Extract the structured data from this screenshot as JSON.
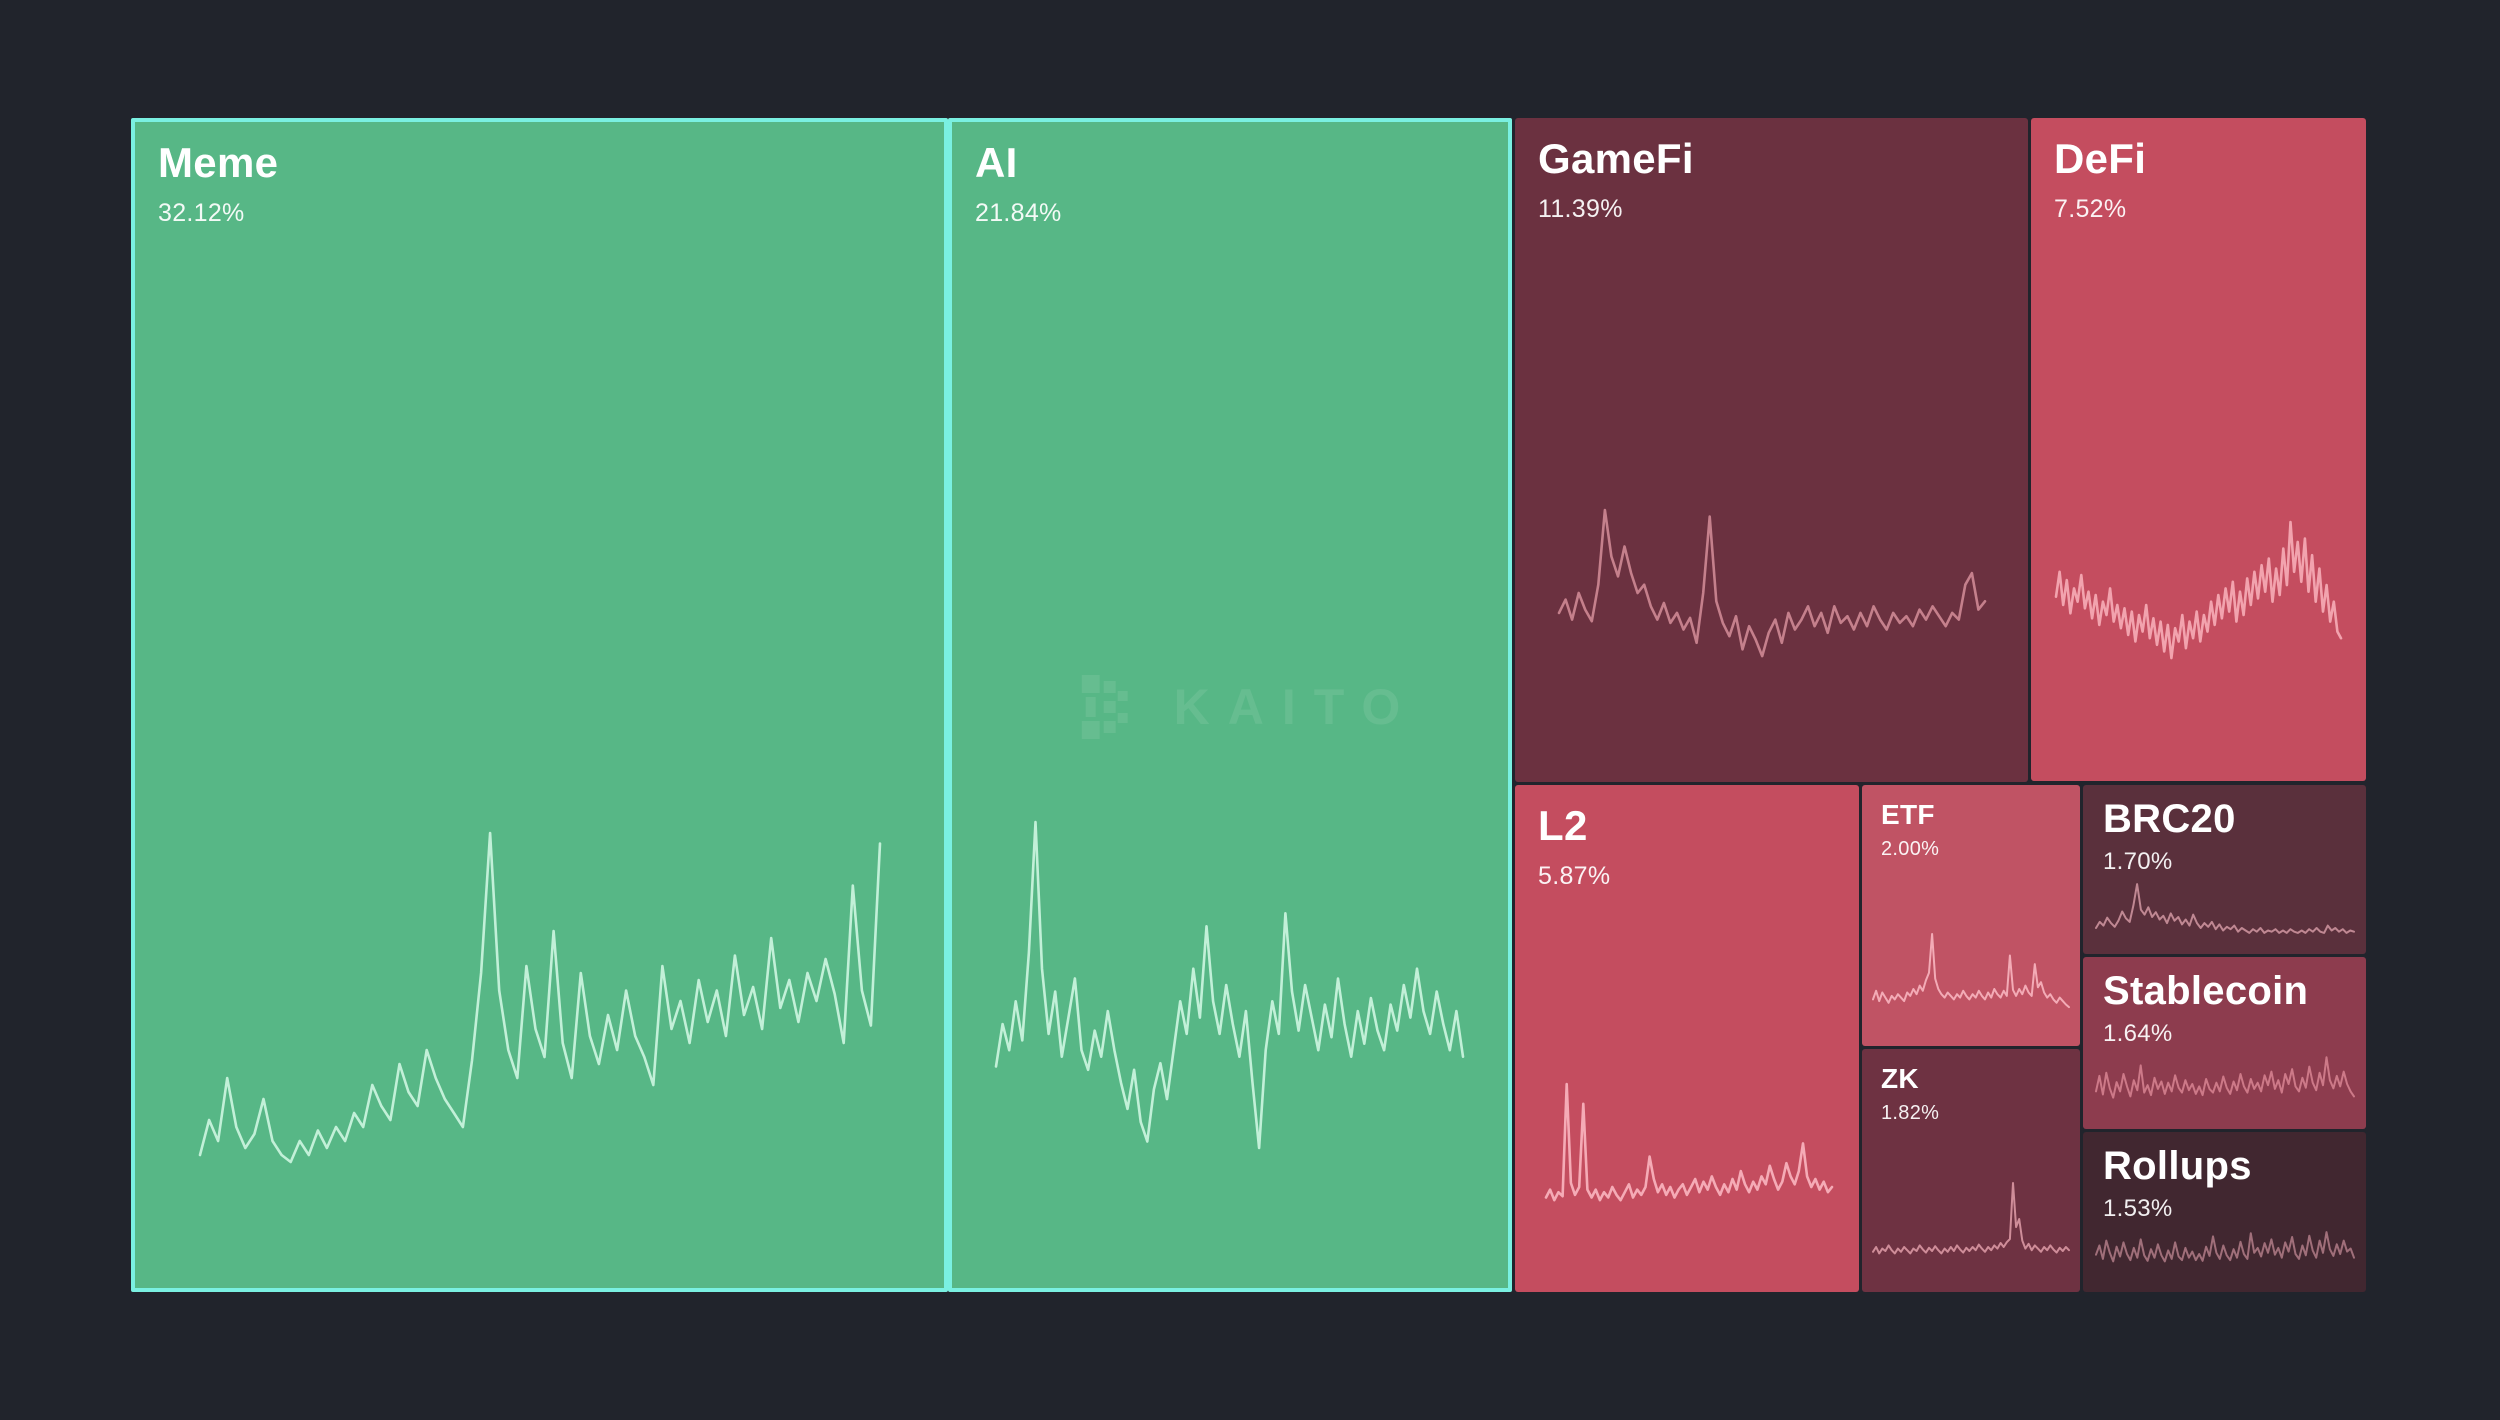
{
  "watermark": {
    "text": "KAITO",
    "logo_icon": "kaito-logo"
  },
  "colors": {
    "background": "#21242c",
    "highlight_border": "#7af0e1",
    "title_text": "#ffffff"
  },
  "chart_data": {
    "type": "treemap",
    "title": "",
    "legend_position": "none",
    "note": "Sector mindshare treemap; each tile shows sector name, share percent and a trend sparkline. Green tiles are highlighted with a cyan border; spark arrays are normalized 0-100.",
    "tiles": [
      {
        "id": "meme",
        "label": "Meme",
        "value": "32.12%",
        "share": 32.12,
        "bg": "#57b786",
        "border": "#7af0e1",
        "spark_color": "#c2f0d8",
        "highlighted": true,
        "spark": [
          8,
          18,
          12,
          30,
          16,
          10,
          14,
          24,
          12,
          8,
          6,
          12,
          8,
          15,
          10,
          16,
          12,
          20,
          16,
          28,
          22,
          18,
          34,
          26,
          22,
          38,
          30,
          24,
          20,
          16,
          35,
          60,
          100,
          55,
          38,
          30,
          62,
          44,
          36,
          72,
          40,
          30,
          60,
          42,
          34,
          48,
          38,
          55,
          42,
          36,
          28,
          62,
          44,
          52,
          40,
          58,
          46,
          55,
          42,
          65,
          48,
          56,
          44,
          70,
          50,
          58,
          46,
          60,
          52,
          64,
          54,
          40,
          85,
          55,
          45,
          97
        ]
      },
      {
        "id": "ai",
        "label": "AI",
        "value": "21.84%",
        "share": 21.84,
        "bg": "#57b786",
        "border": "#7af0e1",
        "spark_color": "#c2f0d8",
        "highlighted": true,
        "spark": [
          25,
          38,
          30,
          45,
          33,
          60,
          100,
          55,
          35,
          48,
          28,
          40,
          52,
          30,
          24,
          36,
          28,
          42,
          30,
          20,
          12,
          24,
          8,
          2,
          18,
          26,
          15,
          30,
          45,
          35,
          55,
          40,
          68,
          45,
          35,
          50,
          38,
          28,
          42,
          20,
          0,
          30,
          45,
          35,
          72,
          48,
          36,
          50,
          40,
          30,
          44,
          34,
          52,
          38,
          28,
          42,
          32,
          46,
          36,
          30,
          44,
          36,
          50,
          40,
          55,
          42,
          35,
          48,
          38,
          30,
          42,
          28
        ]
      },
      {
        "id": "gamefi",
        "label": "GameFi",
        "value": "11.39%",
        "share": 11.39,
        "bg": "#6b3140",
        "spark_color": "#c5808c",
        "highlighted": false,
        "spark": [
          38,
          46,
          34,
          50,
          40,
          33,
          55,
          100,
          72,
          60,
          78,
          62,
          50,
          55,
          42,
          34,
          44,
          32,
          38,
          28,
          35,
          20,
          50,
          96,
          45,
          32,
          24,
          36,
          16,
          30,
          22,
          12,
          26,
          34,
          20,
          38,
          28,
          34,
          42,
          30,
          38,
          26,
          42,
          32,
          36,
          28,
          38,
          30,
          42,
          34,
          28,
          38,
          32,
          36,
          30,
          40,
          34,
          42,
          36,
          30,
          38,
          34,
          55,
          62,
          40,
          45
        ]
      },
      {
        "id": "defi",
        "label": "DeFi",
        "value": "7.52%",
        "share": 7.52,
        "bg": "#c44d5f",
        "spark_color": "#f2a3ae",
        "highlighted": false,
        "spark": [
          55,
          70,
          50,
          65,
          45,
          60,
          52,
          68,
          48,
          58,
          42,
          56,
          38,
          52,
          44,
          60,
          40,
          50,
          36,
          48,
          32,
          46,
          28,
          44,
          34,
          50,
          30,
          42,
          26,
          40,
          22,
          38,
          18,
          36,
          28,
          44,
          24,
          40,
          30,
          46,
          28,
          44,
          34,
          52,
          38,
          56,
          42,
          60,
          46,
          64,
          40,
          58,
          44,
          66,
          50,
          70,
          54,
          74,
          58,
          78,
          52,
          72,
          56,
          84,
          62,
          100,
          70,
          88,
          64,
          90,
          58,
          80,
          52,
          72,
          46,
          62,
          40,
          52,
          34,
          30
        ]
      },
      {
        "id": "l2",
        "label": "L2",
        "value": "5.87%",
        "share": 5.87,
        "bg": "#c44d5f",
        "spark_color": "#f5abb6",
        "highlighted": false,
        "spark": [
          14,
          20,
          12,
          18,
          15,
          100,
          25,
          16,
          22,
          85,
          20,
          14,
          20,
          12,
          18,
          14,
          22,
          16,
          12,
          18,
          24,
          14,
          20,
          16,
          22,
          45,
          28,
          18,
          24,
          16,
          22,
          14,
          20,
          24,
          16,
          22,
          28,
          18,
          26,
          20,
          30,
          22,
          16,
          24,
          18,
          28,
          20,
          34,
          24,
          18,
          26,
          20,
          30,
          24,
          38,
          28,
          20,
          26,
          40,
          30,
          24,
          34,
          55,
          30,
          22,
          28,
          20,
          26,
          18,
          22
        ]
      },
      {
        "id": "etf",
        "label": "ETF",
        "value": "2.00%",
        "share": 2.0,
        "bg": "#c05364",
        "spark_color": "#f3abb6",
        "highlighted": false,
        "spark": [
          24,
          34,
          22,
          32,
          26,
          20,
          28,
          24,
          30,
          26,
          22,
          32,
          28,
          36,
          30,
          40,
          34,
          46,
          55,
          100,
          48,
          36,
          30,
          26,
          32,
          28,
          24,
          30,
          26,
          34,
          28,
          24,
          30,
          26,
          34,
          28,
          24,
          32,
          26,
          36,
          30,
          26,
          34,
          28,
          75,
          35,
          28,
          36,
          30,
          40,
          32,
          28,
          65,
          38,
          44,
          32,
          26,
          30,
          24,
          20,
          26,
          22,
          18,
          15
        ]
      },
      {
        "id": "zk",
        "label": "ZK",
        "value": "1.82%",
        "share": 1.82,
        "bg": "#6e3242",
        "spark_color": "#cf8d99",
        "highlighted": false,
        "spark": [
          14,
          20,
          12,
          18,
          15,
          22,
          16,
          12,
          18,
          14,
          20,
          16,
          12,
          18,
          15,
          22,
          17,
          13,
          19,
          15,
          21,
          16,
          12,
          18,
          14,
          20,
          15,
          22,
          17,
          13,
          19,
          15,
          20,
          16,
          23,
          18,
          14,
          20,
          16,
          22,
          18,
          25,
          20,
          26,
          30,
          100,
          45,
          55,
          28,
          18,
          24,
          16,
          22,
          18,
          14,
          20,
          16,
          22,
          17,
          13,
          19,
          15,
          20,
          16
        ]
      },
      {
        "id": "brc20",
        "label": "BRC20",
        "value": "1.70%",
        "share": 1.7,
        "bg": "#5a303c",
        "spark_color": "#c08893",
        "highlighted": false,
        "spark": [
          18,
          28,
          22,
          35,
          26,
          20,
          30,
          45,
          34,
          28,
          55,
          90,
          48,
          40,
          52,
          36,
          44,
          32,
          38,
          26,
          42,
          30,
          36,
          24,
          32,
          22,
          40,
          26,
          18,
          26,
          20,
          28,
          16,
          24,
          14,
          20,
          16,
          22,
          12,
          18,
          14,
          10,
          16,
          12,
          18,
          10,
          14,
          12,
          16,
          10,
          14,
          10,
          16,
          12,
          10,
          14,
          10,
          16,
          12,
          18,
          12,
          10,
          22,
          14,
          18,
          12,
          16,
          10,
          14,
          12
        ]
      },
      {
        "id": "stablecoin",
        "label": "Stablecoin",
        "value": "1.64%",
        "share": 1.64,
        "bg": "#8d3c4e",
        "spark_color": "#cd7988",
        "highlighted": false,
        "spark": [
          30,
          55,
          25,
          60,
          35,
          20,
          45,
          30,
          58,
          38,
          22,
          48,
          32,
          72,
          28,
          40,
          24,
          52,
          34,
          46,
          26,
          44,
          30,
          56,
          36,
          28,
          48,
          32,
          42,
          26,
          38,
          24,
          50,
          34,
          28,
          44,
          30,
          54,
          36,
          26,
          46,
          32,
          58,
          38,
          28,
          50,
          34,
          44,
          30,
          56,
          40,
          62,
          34,
          48,
          28,
          58,
          42,
          66,
          38,
          30,
          52,
          36,
          70,
          44,
          32,
          60,
          40,
          85,
          48,
          35,
          55,
          38,
          62,
          42,
          30,
          22
        ]
      },
      {
        "id": "rollups",
        "label": "Rollups",
        "value": "1.53%",
        "share": 1.53,
        "bg": "#412730",
        "spark_color": "#a06f7a",
        "highlighted": false,
        "spark": [
          35,
          50,
          28,
          58,
          38,
          24,
          48,
          32,
          55,
          36,
          26,
          46,
          30,
          60,
          34,
          25,
          44,
          30,
          52,
          34,
          24,
          42,
          28,
          55,
          32,
          26,
          46,
          30,
          40,
          26,
          36,
          25,
          48,
          33,
          65,
          38,
          28,
          50,
          34,
          26,
          44,
          30,
          56,
          36,
          28,
          70,
          38,
          46,
          32,
          54,
          38,
          60,
          35,
          46,
          30,
          55,
          40,
          64,
          36,
          28,
          50,
          34,
          66,
          42,
          30,
          58,
          38,
          72,
          44,
          33,
          52,
          36,
          58,
          40,
          45,
          30
        ]
      }
    ]
  }
}
